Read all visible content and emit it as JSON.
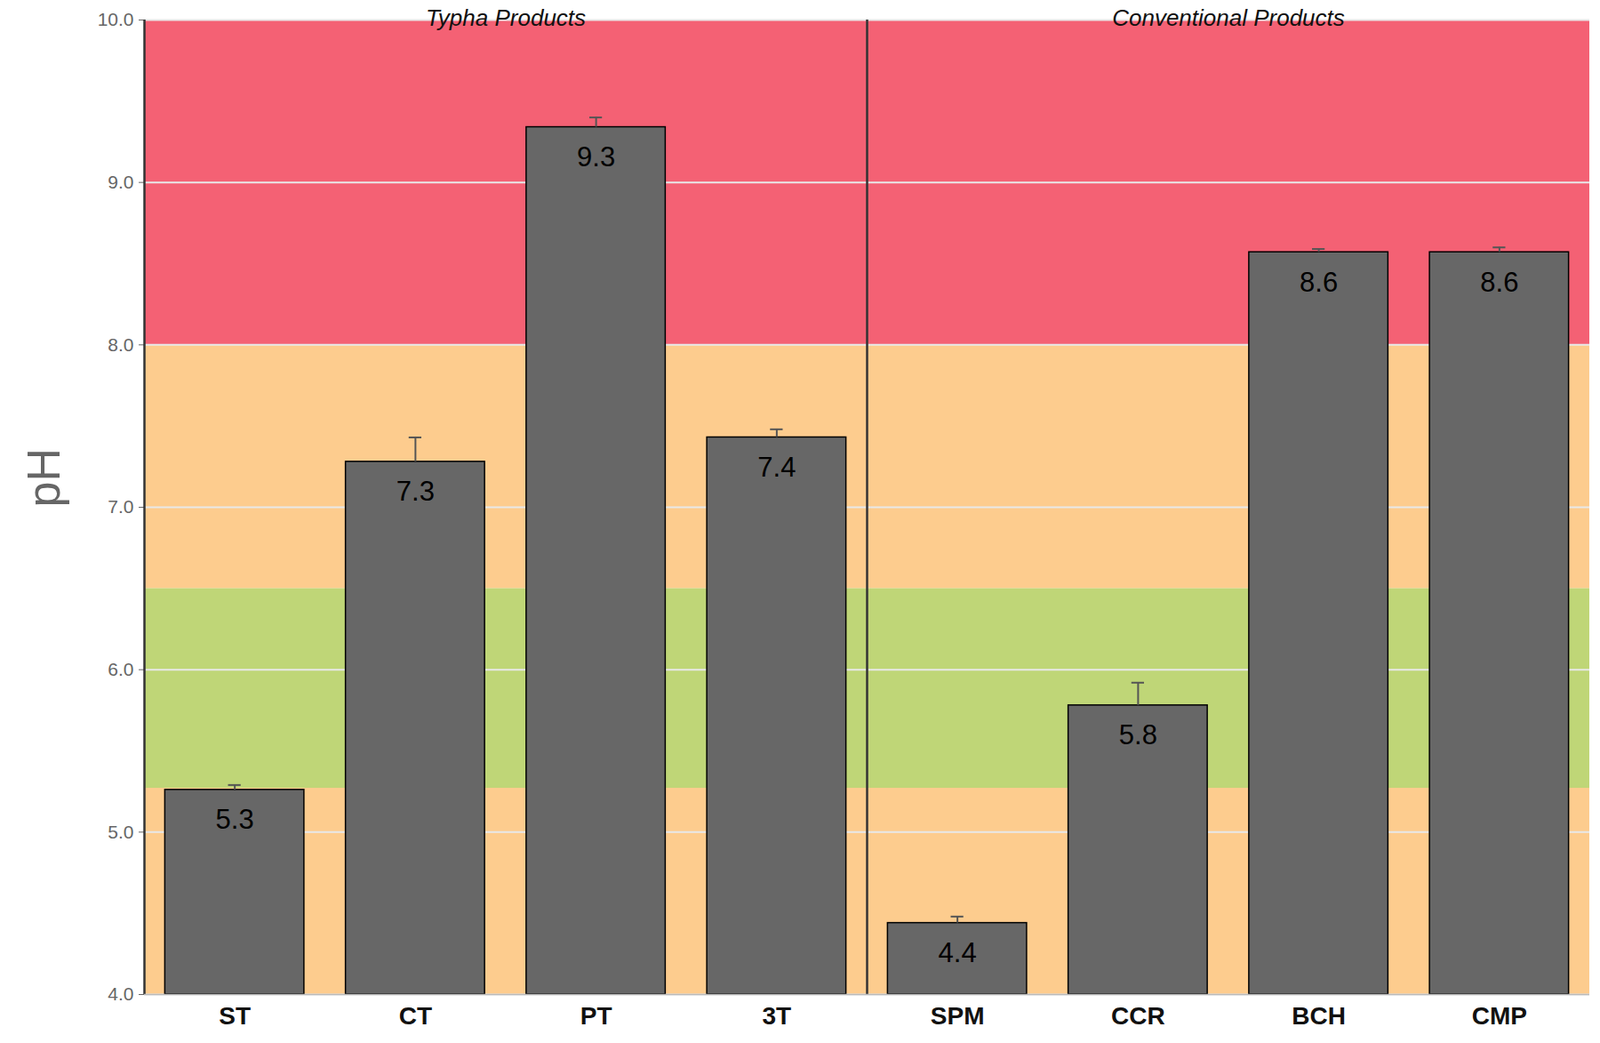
{
  "chart_data": {
    "type": "bar",
    "ylabel": "pH",
    "categories": [
      "ST",
      "CT",
      "PT",
      "3T",
      "SPM",
      "CCR",
      "BCH",
      "CMP"
    ],
    "values": [
      5.26,
      7.28,
      9.34,
      7.43,
      4.44,
      5.78,
      8.57,
      8.57
    ],
    "value_labels": [
      "5.3",
      "7.3",
      "9.3",
      "7.4",
      "4.4",
      "5.8",
      "8.6",
      "8.6"
    ],
    "errors": [
      0.03,
      0.15,
      0.06,
      0.05,
      0.04,
      0.14,
      0.02,
      0.03
    ],
    "color": "#676767",
    "groups": [
      {
        "label": "Typha Products",
        "categories": [
          "ST",
          "CT",
          "PT",
          "3T"
        ]
      },
      {
        "label": "Conventional Products",
        "categories": [
          "SPM",
          "CCR",
          "BCH",
          "CMP"
        ]
      }
    ],
    "bands": [
      {
        "from": 4.0,
        "to": 5.27,
        "color": "#fdcc8e"
      },
      {
        "from": 5.27,
        "to": 6.5,
        "color": "#bfd677"
      },
      {
        "from": 6.5,
        "to": 8.0,
        "color": "#fdcc8e"
      },
      {
        "from": 8.0,
        "to": 10.0,
        "color": "#f46174"
      }
    ],
    "ylim": [
      4,
      10
    ],
    "yticks": [
      {
        "value": 4,
        "label": "4.0"
      },
      {
        "value": 5,
        "label": "5.0"
      },
      {
        "value": 6,
        "label": "6.0"
      },
      {
        "value": 7,
        "label": "7.0"
      },
      {
        "value": 8,
        "label": "8.0"
      },
      {
        "value": 9,
        "label": "9.0"
      },
      {
        "value": 10,
        "label": "10.0"
      }
    ],
    "grid": true,
    "data_labels": true
  }
}
